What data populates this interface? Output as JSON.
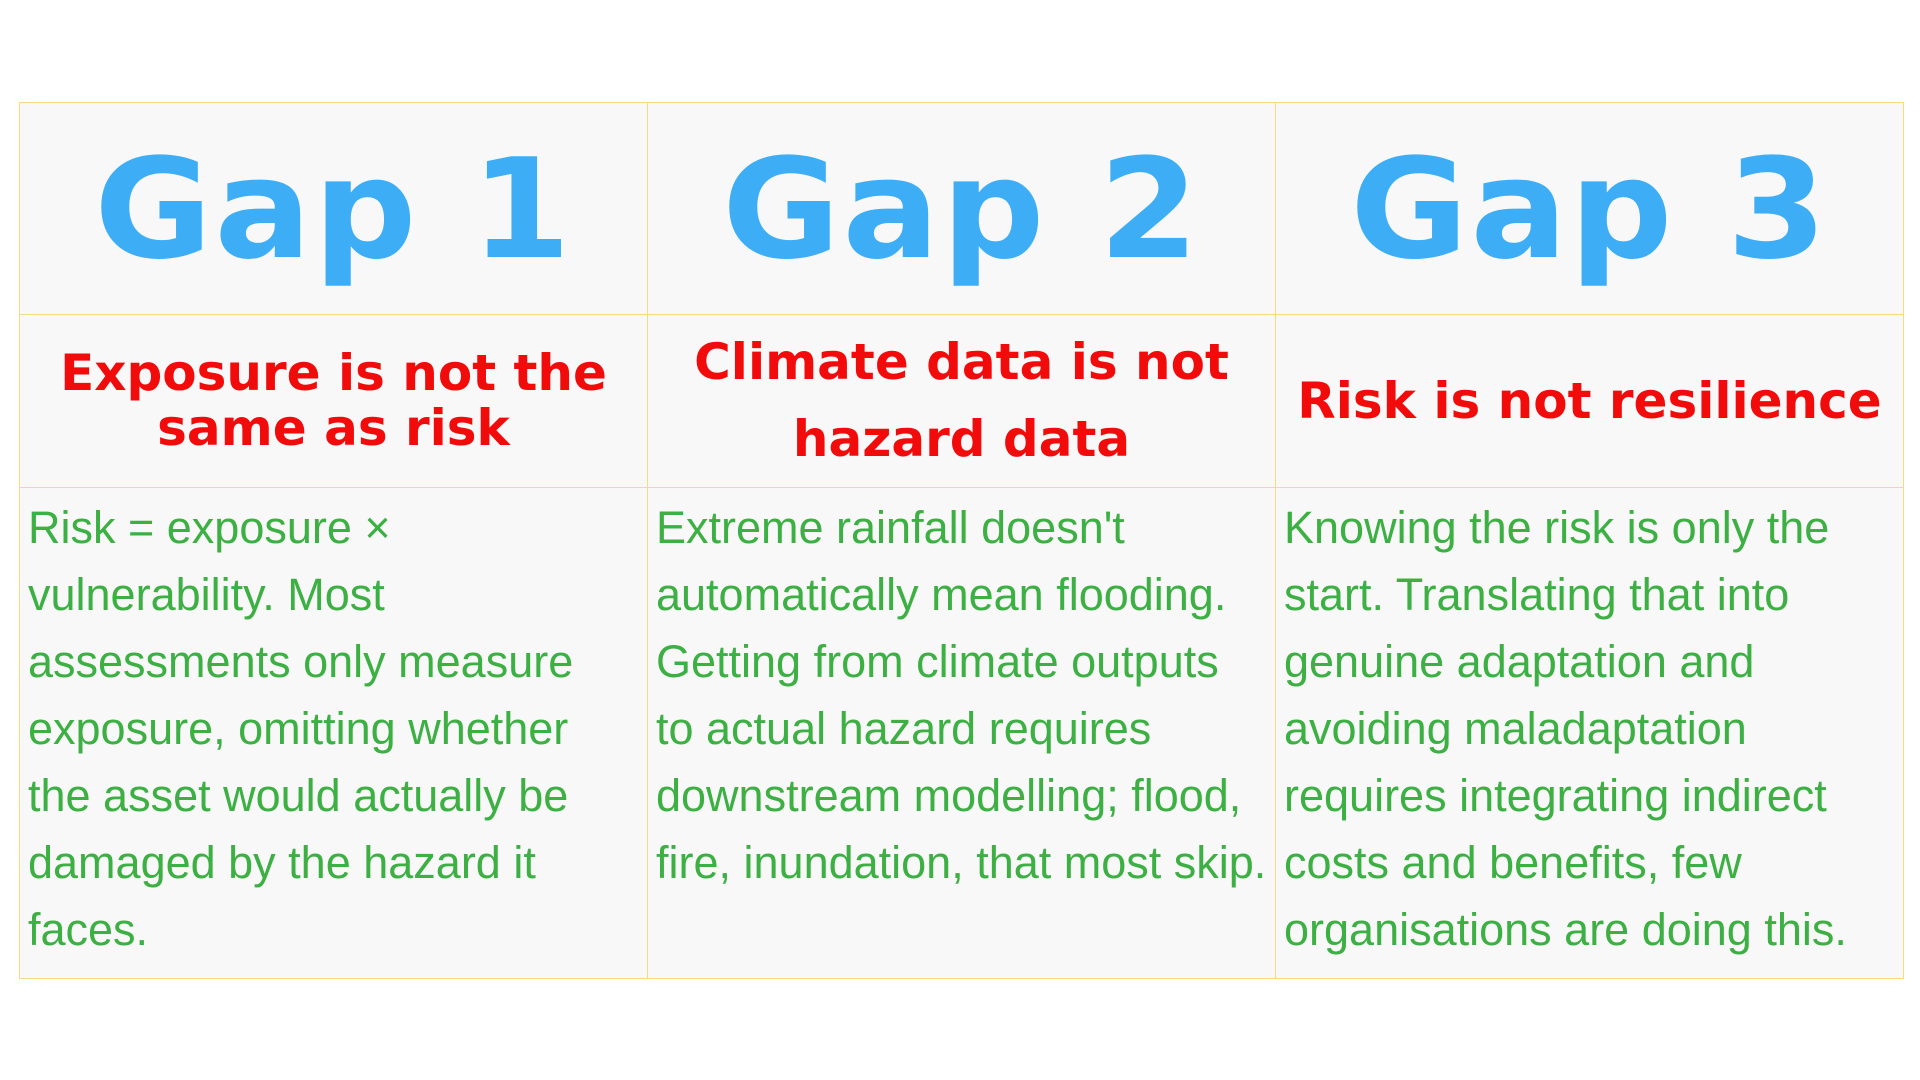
{
  "colors": {
    "heading": "#3daef5",
    "title": "#f20b0b",
    "body": "#3cb043",
    "border": "#f3dd82",
    "cell_background": "#f8f8f8"
  },
  "gaps": [
    {
      "heading": "Gap 1",
      "title": "Exposure is not the same as risk",
      "body": "Risk = exposure × vulnerability. Most assessments only measure exposure, omitting whether the asset would actually be damaged by the hazard it faces."
    },
    {
      "heading": "Gap 2",
      "title": "Climate data is not hazard data",
      "body": "Extreme rainfall doesn't automatically mean flooding. Getting from climate outputs to actual hazard requires downstream modelling; flood, fire, inundation, that most skip."
    },
    {
      "heading": "Gap 3",
      "title": "Risk is not resilience",
      "body": "Knowing the risk is only the start. Translating that into genuine adaptation and avoiding maladaptation requires integrating indirect costs and benefits, few organisations are doing this."
    }
  ]
}
